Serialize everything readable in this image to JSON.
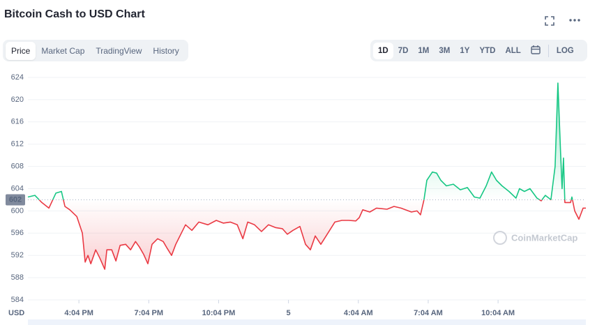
{
  "chart_data": {
    "type": "line",
    "title": "Bitcoin Cash to USD Chart",
    "tabs": [
      "Price",
      "Market Cap",
      "TradingView",
      "History"
    ],
    "active_tab": 0,
    "range_buttons": [
      "1D",
      "7D",
      "1M",
      "3M",
      "1Y",
      "YTD",
      "ALL"
    ],
    "active_range": 0,
    "scale_button": "LOG",
    "currency_label": "USD",
    "watermark": "CoinMarketCap",
    "reference_price": 602,
    "color_up": "#16c784",
    "color_down": "#ea3943",
    "grid": true,
    "xlim": [
      -2.19,
      21.77
    ],
    "xticks": [
      {
        "value": 0,
        "label": "4:04 PM"
      },
      {
        "value": 3,
        "label": "7:04 PM"
      },
      {
        "value": 6,
        "label": "10:04 PM"
      },
      {
        "value": 9,
        "label": "5"
      },
      {
        "value": 12,
        "label": "4:04 AM"
      },
      {
        "value": 15,
        "label": "7:04 AM"
      },
      {
        "value": 18,
        "label": "10:04 AM"
      }
    ],
    "ylim": [
      584,
      624
    ],
    "yticks": [
      584,
      588,
      592,
      596,
      600,
      604,
      608,
      612,
      616,
      620,
      624
    ],
    "series": [
      {
        "x": [
          -2.19,
          -1.89,
          -1.59,
          -1.29,
          -0.99,
          -0.75,
          -0.6,
          -0.39,
          -0.09,
          0.15,
          0.27,
          0.39,
          0.51,
          0.72,
          0.9,
          1.11,
          1.2,
          1.41,
          1.59,
          1.77,
          2.01,
          2.22,
          2.43,
          2.6,
          2.78,
          2.96,
          3.14,
          3.38,
          3.62,
          3.8,
          3.98,
          4.16,
          4.4,
          4.58,
          4.85,
          5.15,
          5.54,
          5.9,
          6.2,
          6.5,
          6.8,
          7.04,
          7.25,
          7.54,
          7.84,
          8.14,
          8.44,
          8.74,
          8.95,
          9.19,
          9.49,
          9.73,
          9.94,
          10.15,
          10.39,
          10.69,
          10.99,
          11.29,
          11.59,
          11.89,
          12.04,
          12.19,
          12.49,
          12.78,
          13.23,
          13.53,
          13.83,
          14.28,
          14.52,
          14.67,
          14.82,
          14.94,
          15.18,
          15.36,
          15.54,
          15.78,
          16.08,
          16.38,
          16.68,
          16.98,
          17.22,
          17.49,
          17.72,
          17.93,
          18.17,
          18.47,
          18.77,
          18.92,
          19.13,
          19.37,
          19.67,
          19.85,
          20.03,
          20.27,
          20.45,
          20.57,
          20.69,
          20.75,
          20.81,
          20.87,
          21.11,
          21.17,
          21.29,
          21.47,
          21.65,
          21.77
        ],
        "values": [
          602.5,
          602.8,
          601.5,
          600.5,
          603.2,
          603.5,
          600.8,
          600.2,
          599.0,
          596,
          590.8,
          592,
          590.5,
          593,
          591.5,
          589.5,
          593,
          593,
          591,
          593.8,
          594,
          593,
          594.5,
          593.5,
          592.2,
          590.5,
          594,
          595,
          594.5,
          593.2,
          592,
          594,
          596,
          597.5,
          596.5,
          598,
          597.5,
          598.3,
          597.8,
          598,
          597.5,
          595,
          598,
          597.5,
          596.3,
          597.5,
          597,
          596.8,
          595.8,
          596.5,
          597.2,
          594,
          593,
          595.5,
          594,
          596,
          598,
          598.3,
          598.3,
          598.2,
          598.8,
          600.2,
          599.8,
          600.5,
          600.3,
          600.8,
          600.5,
          599.8,
          600,
          599.3,
          602,
          605.5,
          607,
          606.8,
          605.5,
          604.5,
          604.8,
          603.8,
          604.2,
          602.5,
          602.3,
          604.5,
          607,
          605.5,
          604.5,
          603.5,
          602.3,
          604,
          603.5,
          604,
          602.3,
          601.8,
          602.8,
          602,
          608,
          623,
          610,
          604,
          609.5,
          601.5,
          601.5,
          602.5,
          600,
          598.5,
          600.5,
          600.5
        ]
      }
    ]
  }
}
